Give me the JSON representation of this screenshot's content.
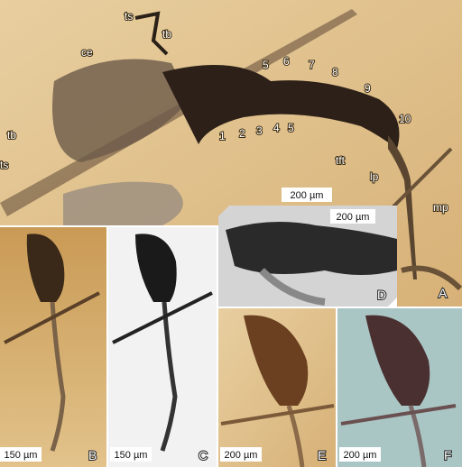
{
  "panels": [
    {
      "letter": "A",
      "scale_bar": "200 µm",
      "annotations": [
        "ts",
        "tb",
        "ce",
        "5",
        "6",
        "7",
        "8",
        "9",
        "10",
        "1",
        "2",
        "3",
        "4",
        "5",
        "tb",
        "ts",
        "tft",
        "lp",
        "mp"
      ]
    },
    {
      "letter": "B",
      "scale_bar": "150 µm"
    },
    {
      "letter": "C",
      "scale_bar": "150 µm"
    },
    {
      "letter": "D",
      "scale_bar": "200 µm"
    },
    {
      "letter": "E",
      "scale_bar": "200 µm"
    },
    {
      "letter": "F",
      "scale_bar": "200 µm"
    }
  ]
}
